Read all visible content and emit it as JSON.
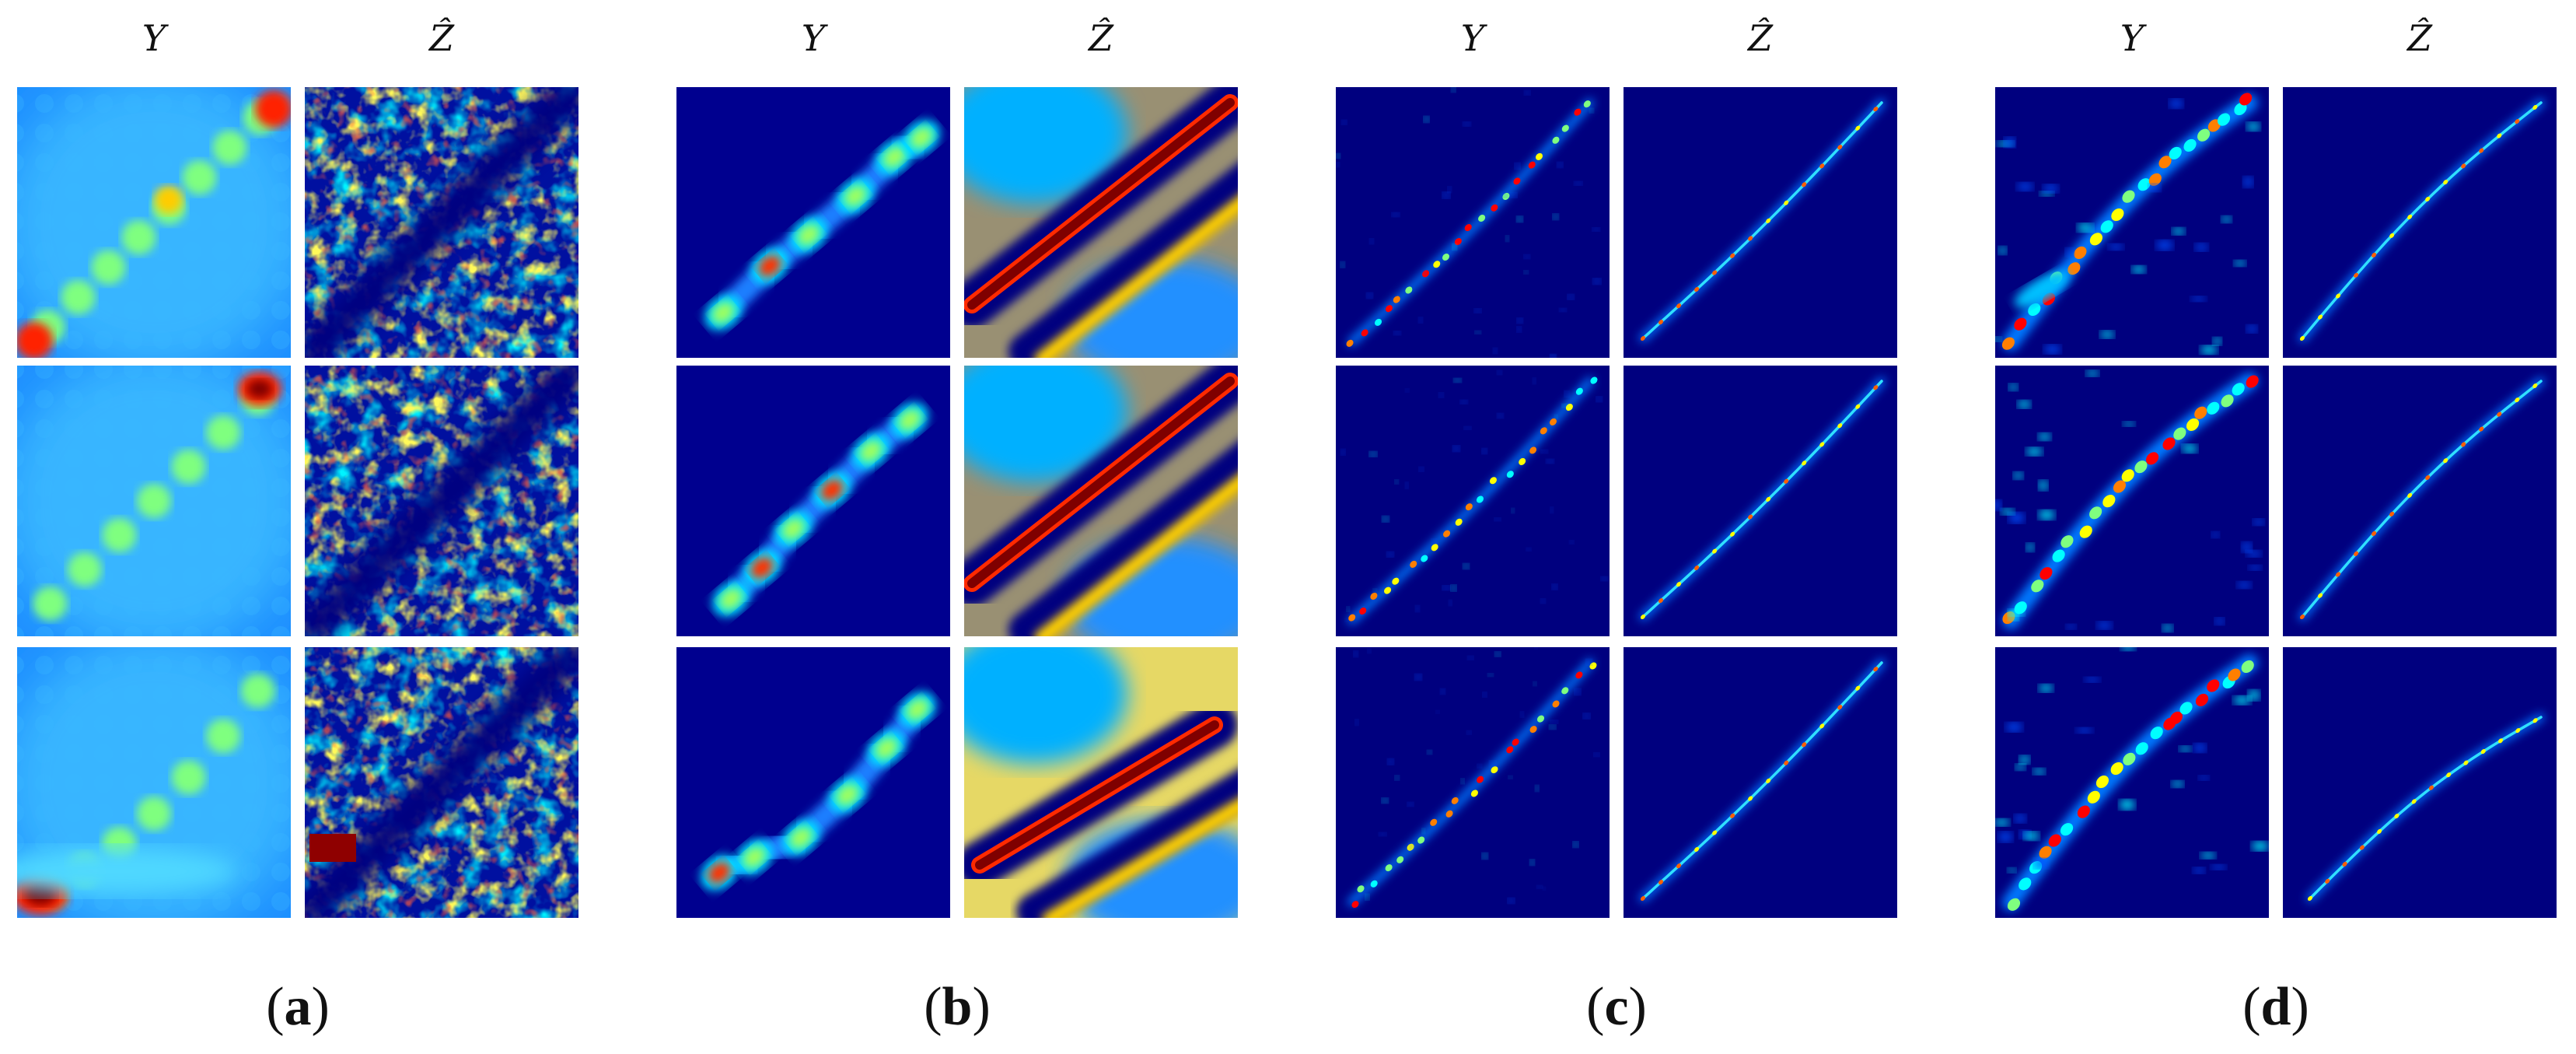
{
  "figure": {
    "column_labels": [
      "Y",
      "Ẑ"
    ],
    "panels": [
      {
        "label_open": "(",
        "letter": "a",
        "label_close": ")",
        "variant": "a"
      },
      {
        "label_open": "(",
        "letter": "b",
        "label_close": ")",
        "variant": "b"
      },
      {
        "label_open": "(",
        "letter": "c",
        "label_close": ")",
        "variant": "c"
      },
      {
        "label_open": "(",
        "letter": "d",
        "label_close": ")",
        "variant": "d"
      }
    ],
    "colormap": [
      "#00007f",
      "#0000ff",
      "#007fff",
      "#00ffff",
      "#7fff7f",
      "#ffff00",
      "#ff7f00",
      "#ff0000",
      "#7f0000"
    ]
  }
}
